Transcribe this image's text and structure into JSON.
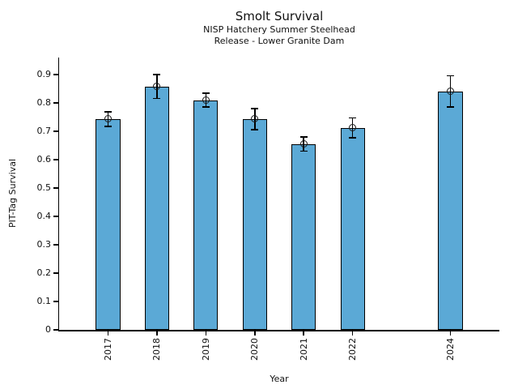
{
  "header": {
    "title": "Smolt Survival",
    "subtitle": [
      "NISP Hatchery Summer Steelhead",
      "Release - Lower Granite Dam"
    ]
  },
  "chart_data": {
    "type": "bar",
    "title": "Smolt Survival",
    "subtitle": [
      "NISP Hatchery Summer Steelhead",
      "Release - Lower Granite Dam"
    ],
    "xlabel": "Year",
    "ylabel": "PIT-Tag Survival",
    "categories": [
      2017,
      2018,
      2019,
      2020,
      2021,
      2022,
      2024
    ],
    "xticklabels": [
      "2017",
      "2018",
      "2019",
      "2020",
      "2021",
      "2022",
      "2024"
    ],
    "values": [
      0.743,
      0.858,
      0.81,
      0.743,
      0.655,
      0.712,
      0.841
    ],
    "errors": [
      0.026,
      0.042,
      0.024,
      0.037,
      0.025,
      0.035,
      0.055
    ],
    "error_marker": "open-circle",
    "yticks": [
      0,
      0.1,
      0.2,
      0.3,
      0.4,
      0.5,
      0.6,
      0.7,
      0.8,
      0.9
    ],
    "ytick_labels": [
      "0",
      "0.1",
      "0.2",
      "0.3",
      "0.4",
      "0.5",
      "0.6",
      "0.7",
      "0.8",
      "0.9"
    ],
    "xlim": [
      2016,
      2025
    ],
    "ylim": [
      0,
      0.96
    ],
    "bar_width_years": 0.5,
    "bar_color": "#5BA9D6",
    "bar_edge_color": "#000000",
    "error_color": "#000000",
    "grid": false,
    "legend": null
  }
}
